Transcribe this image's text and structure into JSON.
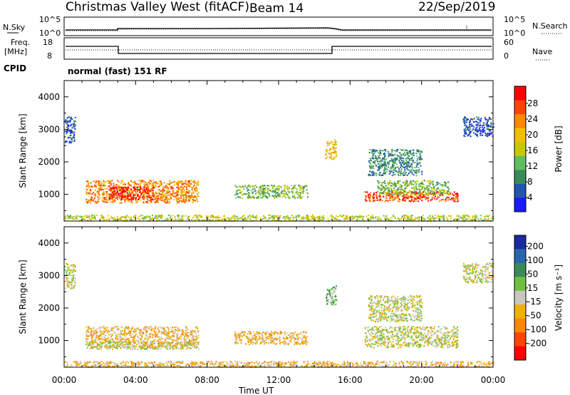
{
  "header": {
    "title": "Christmas Valley West (fitACF)",
    "beam": "Beam 14",
    "date": "22/Sep/2019"
  },
  "top_panel": {
    "left_label": "N.Sky",
    "right_label": "N.Search",
    "left_ticks": [
      "10^5",
      "10^0"
    ],
    "right_ticks": [
      "10^5",
      "10^0"
    ]
  },
  "freq_panel": {
    "left_label_1": "Freq.",
    "left_label_2": "[MHz]",
    "right_label": "Nave",
    "left_ticks": [
      "18",
      "8"
    ],
    "right_ticks": [
      "60",
      "0"
    ]
  },
  "cpid": {
    "label": "CPID",
    "value": "normal (fast) 151 RF"
  },
  "chart_data": [
    {
      "type": "heatmap",
      "name": "Power",
      "ylabel": "Slant Range [km]",
      "colorbar_label": "Power [dB]",
      "colorbar_ticks": [
        "28",
        "24",
        "20",
        "16",
        "12",
        "8",
        "4"
      ],
      "colors": [
        "#1a1aff",
        "#2255b0",
        "#3a8a5a",
        "#5fbf5f",
        "#c8c800",
        "#f0c000",
        "#ff8800",
        "#ff4400",
        "#ff0000"
      ],
      "y_ticks": [
        "4000",
        "3000",
        "2000",
        "1000"
      ],
      "ylim": [
        180,
        4500
      ],
      "xlim": [
        0,
        24
      ],
      "regions": [
        {
          "t0": 1.2,
          "t1": 7.5,
          "r0": 750,
          "r1": 1450,
          "level": 6
        },
        {
          "t0": 2.5,
          "t1": 5.0,
          "r0": 850,
          "r1": 1250,
          "level": 8
        },
        {
          "t0": 9.5,
          "t1": 13.6,
          "r0": 900,
          "r1": 1300,
          "level": 3
        },
        {
          "t0": 16.8,
          "t1": 22.0,
          "r0": 800,
          "r1": 1100,
          "level": 7
        },
        {
          "t0": 17.5,
          "t1": 21.5,
          "r0": 1000,
          "r1": 1450,
          "level": 3
        },
        {
          "t0": 17.0,
          "t1": 20.0,
          "r0": 1600,
          "r1": 2400,
          "level": 2
        },
        {
          "t0": 14.6,
          "t1": 15.2,
          "r0": 2100,
          "r1": 2700,
          "level": 5
        },
        {
          "t0": 0.0,
          "t1": 0.6,
          "r0": 2600,
          "r1": 3400,
          "level": 1
        },
        {
          "t0": 22.3,
          "t1": 24.0,
          "r0": 2800,
          "r1": 3400,
          "level": 1
        },
        {
          "t0": 0.0,
          "t1": 24.0,
          "r0": 200,
          "r1": 380,
          "level": 4
        }
      ]
    },
    {
      "type": "heatmap",
      "name": "Velocity",
      "ylabel": "Slant Range [km]",
      "colorbar_label": "Velocity [m s⁻¹]",
      "colorbar_ticks": [
        "200",
        "100",
        "50",
        "15",
        "-15",
        "-50",
        "-100",
        "-200"
      ],
      "colors": [
        "#1a2aa0",
        "#2a66b0",
        "#3a8a5a",
        "#70c040",
        "#c8c8c0",
        "#f0b000",
        "#ff8800",
        "#ff4400",
        "#ff0000"
      ],
      "y_ticks": [
        "4000",
        "3000",
        "2000",
        "1000"
      ],
      "ylim": [
        180,
        4500
      ],
      "xlim": [
        0,
        24
      ],
      "regions": [
        {
          "t0": 1.2,
          "t1": 7.5,
          "r0": 800,
          "r1": 1450,
          "level": 5
        },
        {
          "t0": 1.2,
          "t1": 7.5,
          "r0": 750,
          "r1": 1000,
          "level": 4
        },
        {
          "t0": 9.5,
          "t1": 13.6,
          "r0": 900,
          "r1": 1300,
          "level": 5
        },
        {
          "t0": 16.8,
          "t1": 22.0,
          "r0": 800,
          "r1": 1450,
          "level": 4
        },
        {
          "t0": 17.0,
          "t1": 20.0,
          "r0": 1600,
          "r1": 2400,
          "level": 4
        },
        {
          "t0": 14.6,
          "t1": 15.2,
          "r0": 2100,
          "r1": 2700,
          "level": 3
        },
        {
          "t0": 0.0,
          "t1": 0.6,
          "r0": 2600,
          "r1": 3400,
          "level": 4
        },
        {
          "t0": 22.3,
          "t1": 24.0,
          "r0": 2800,
          "r1": 3400,
          "level": 4
        },
        {
          "t0": 0.0,
          "t1": 24.0,
          "r0": 200,
          "r1": 380,
          "level": 5
        }
      ]
    }
  ],
  "x_axis": {
    "ticks": [
      "00:00",
      "04:00",
      "08:00",
      "12:00",
      "16:00",
      "20:00",
      "00:00"
    ],
    "label": "Time UT"
  }
}
